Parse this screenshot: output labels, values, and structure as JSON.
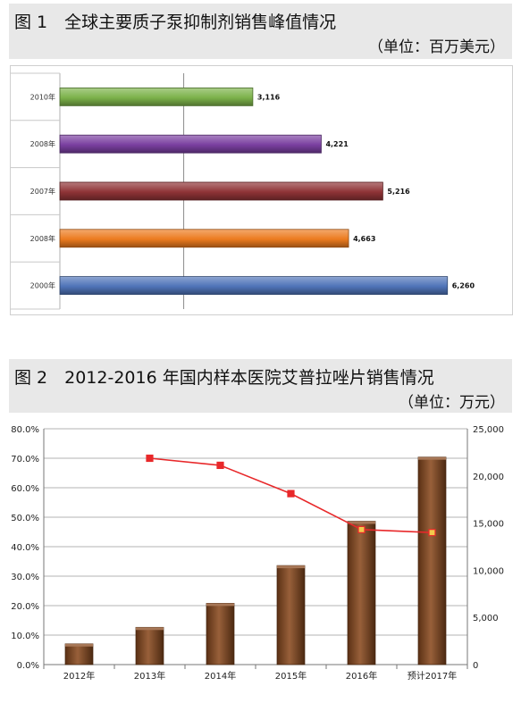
{
  "figure1": {
    "title": "图 1　全球主要质子泵抑制剂销售峰值情况",
    "unit": "（单位：百万美元）",
    "chart_data": {
      "type": "bar",
      "orientation": "horizontal",
      "categories": [
        "2010年",
        "2008年",
        "2007年",
        "2008年",
        "2000年"
      ],
      "values": [
        3116,
        4221,
        5216,
        4663,
        6260
      ],
      "data_labels": [
        "3,116",
        "4,221",
        "5,216",
        "4,663",
        "6,260"
      ],
      "bar_colors": [
        "#7cb24a",
        "#7a3fa0",
        "#8f3336",
        "#ec7b1f",
        "#4f74b8"
      ],
      "xlim": [
        0,
        7000
      ],
      "x_ticks": [
        "0.0",
        "1000.0",
        "2000.0",
        "3000.0",
        "4000.0",
        "5000.0",
        "6000.0",
        "7000.0"
      ],
      "grid": "vertical at 2000",
      "legend": "none"
    }
  },
  "figure2": {
    "title": "图 2　2012-2016 年国内样本医院艾普拉唑片销售情况",
    "unit": "（单位：万元）",
    "chart_data": {
      "type": "bar",
      "categories": [
        "2012年",
        "2013年",
        "2014年",
        "2015年",
        "2016年",
        "预计2017年"
      ],
      "series": [
        {
          "chart": "bar",
          "axis": "right",
          "color": "#8a4a1f",
          "values": [
            2200,
            3950,
            6500,
            10500,
            15200,
            22000
          ]
        },
        {
          "chart": "line",
          "axis": "left",
          "color": "#e8282a",
          "values": [
            null,
            0.7,
            0.676,
            0.58,
            0.458,
            0.448
          ]
        }
      ],
      "left_axis": {
        "ylim": [
          0,
          0.8
        ],
        "ticks": [
          "80.0%",
          "70.0%",
          "60.0%",
          "50.0%",
          "40.0%",
          "30.0%",
          "20.0%",
          "10.0%",
          "0.0%"
        ]
      },
      "right_axis": {
        "ylim": [
          0,
          25000
        ],
        "ticks": [
          "25,000",
          "20,000",
          "15,000",
          "10,000",
          "5,000",
          "0"
        ]
      },
      "grid": "horizontal",
      "legend": "none"
    }
  }
}
